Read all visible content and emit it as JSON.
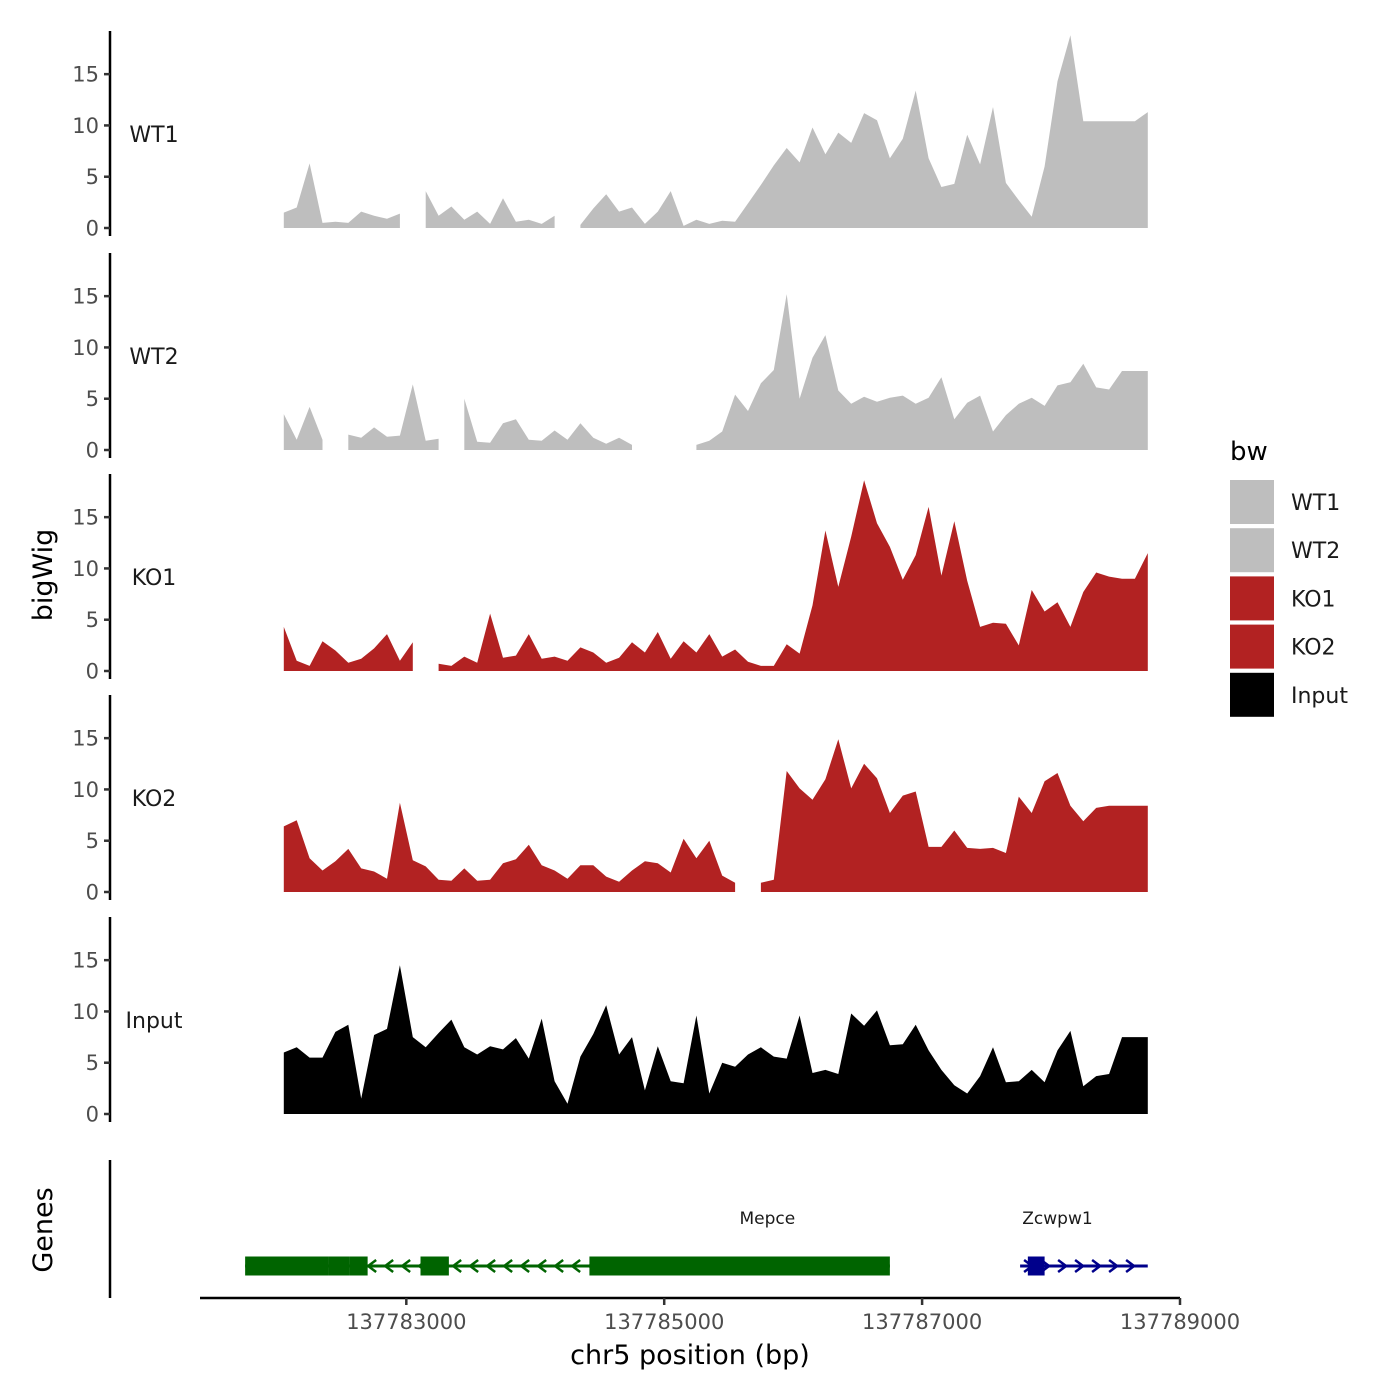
{
  "chart_data": {
    "type": "area",
    "title": "",
    "xlabel": "chr5 position (bp)",
    "ylabel": "bigWig",
    "xlim": [
      137781400,
      137789000
    ],
    "ylim": [
      0,
      19.5
    ],
    "x_ticks": [
      137783000,
      137785000,
      137787000,
      137789000
    ],
    "x_tick_labels": [
      "137783000",
      "137785000",
      "137787000",
      "137789000"
    ],
    "y_ticks": [
      0,
      5,
      10,
      15
    ],
    "y_tick_labels": [
      "0",
      "5",
      "10",
      "15"
    ],
    "genes_label": "Genes",
    "legend": {
      "title": "bw",
      "position": "right",
      "items": [
        {
          "name": "WT1",
          "color": "#bebebe"
        },
        {
          "name": "WT2",
          "color": "#bebebe"
        },
        {
          "name": "KO1",
          "color": "#b22222"
        },
        {
          "name": "KO2",
          "color": "#b22222"
        },
        {
          "name": "Input",
          "color": "#000000"
        }
      ]
    },
    "x": [
      137782050,
      137782150,
      137782250,
      137782350,
      137782450,
      137782550,
      137782650,
      137782750,
      137782850,
      137782950,
      137783050,
      137783150,
      137783250,
      137783350,
      137783450,
      137783550,
      137783650,
      137783750,
      137783850,
      137783950,
      137784050,
      137784150,
      137784250,
      137784350,
      137784450,
      137784550,
      137784650,
      137784750,
      137784850,
      137784950,
      137785050,
      137785150,
      137785250,
      137785350,
      137785450,
      137785550,
      137785650,
      137785750,
      137785850,
      137785950,
      137786050,
      137786150,
      137786250,
      137786350,
      137786450,
      137786550,
      137786650,
      137786750,
      137786850,
      137786950,
      137787050,
      137787150,
      137787250,
      137787350,
      137787450,
      137787550,
      137787650,
      137787750,
      137787850,
      137787950,
      137788050,
      137788150,
      137788250,
      137788350,
      137788450,
      137788550,
      137788650,
      137788750
    ],
    "series": [
      {
        "name": "WT1",
        "color": "#bebebe",
        "values": [
          1.5,
          2.0,
          6.3,
          0.5,
          0.6,
          0.5,
          1.6,
          1.2,
          0.9,
          1.4,
          null,
          3.6,
          1.2,
          2.1,
          0.8,
          1.6,
          0.4,
          2.9,
          0.6,
          0.8,
          0.4,
          1.2,
          null,
          0.3,
          1.9,
          3.3,
          1.6,
          2.0,
          0.4,
          1.6,
          3.6,
          0.2,
          0.8,
          0.4,
          0.7,
          0.6,
          2.4,
          4.2,
          6.1,
          7.8,
          6.4,
          9.8,
          7.2,
          9.3,
          8.3,
          11.2,
          10.5,
          6.8,
          8.7,
          13.4,
          6.8,
          4.0,
          4.3,
          9.1,
          6.2,
          11.8,
          4.4,
          2.7,
          1.1,
          6.0,
          14.3,
          18.8,
          10.4,
          10.4,
          10.4,
          10.4,
          10.4,
          11.3
        ]
      },
      {
        "name": "WT2",
        "color": "#bebebe",
        "values": [
          3.5,
          1.0,
          4.2,
          1.0,
          null,
          1.5,
          1.2,
          2.2,
          1.3,
          1.4,
          6.4,
          0.9,
          1.1,
          null,
          5.0,
          0.8,
          0.7,
          2.6,
          3.0,
          1.0,
          0.9,
          1.9,
          1.0,
          2.6,
          1.2,
          0.6,
          1.2,
          0.5,
          null,
          null,
          null,
          null,
          0.5,
          0.9,
          1.8,
          5.4,
          3.8,
          6.5,
          7.8,
          15.2,
          5.0,
          9.0,
          11.2,
          5.8,
          4.5,
          5.2,
          4.7,
          5.1,
          5.3,
          4.5,
          5.1,
          7.1,
          3.0,
          4.6,
          5.3,
          1.8,
          3.4,
          4.5,
          5.1,
          4.3,
          6.3,
          6.6,
          8.4,
          6.1,
          5.9,
          7.7,
          7.7,
          7.7
        ]
      },
      {
        "name": "KO1",
        "color": "#b22222",
        "values": [
          4.3,
          1.0,
          0.5,
          2.9,
          2.0,
          0.8,
          1.2,
          2.2,
          3.6,
          1.0,
          2.8,
          null,
          0.7,
          0.5,
          1.4,
          0.8,
          5.6,
          1.3,
          1.5,
          3.6,
          1.2,
          1.4,
          1.0,
          2.3,
          1.8,
          0.8,
          1.3,
          2.8,
          1.8,
          3.8,
          1.2,
          2.9,
          1.8,
          3.6,
          1.4,
          2.1,
          0.9,
          0.5,
          0.5,
          2.6,
          1.7,
          6.4,
          13.7,
          8.2,
          13.1,
          18.6,
          14.4,
          12.1,
          8.9,
          11.3,
          16.0,
          9.3,
          14.6,
          8.8,
          4.3,
          4.7,
          4.6,
          2.5,
          7.9,
          5.8,
          6.7,
          4.3,
          7.7,
          9.6,
          9.2,
          9.0,
          9.0,
          11.5
        ]
      },
      {
        "name": "KO2",
        "color": "#b22222",
        "values": [
          6.4,
          7.0,
          3.3,
          2.1,
          3.0,
          4.2,
          2.3,
          2.0,
          1.3,
          8.7,
          3.1,
          2.5,
          1.2,
          1.1,
          2.3,
          1.1,
          1.2,
          2.8,
          3.2,
          4.6,
          2.6,
          2.1,
          1.3,
          2.6,
          2.6,
          1.5,
          1.0,
          2.1,
          3.0,
          2.8,
          1.9,
          5.2,
          3.3,
          5.0,
          1.6,
          0.9,
          null,
          0.9,
          1.2,
          11.8,
          10.1,
          9.0,
          11.0,
          14.9,
          10.1,
          12.5,
          11.1,
          7.7,
          9.4,
          9.8,
          4.4,
          4.4,
          6.0,
          4.3,
          4.2,
          4.3,
          3.8,
          9.3,
          7.7,
          10.8,
          11.6,
          8.4,
          6.9,
          8.2,
          8.4,
          8.4,
          8.4,
          8.4
        ]
      },
      {
        "name": "Input",
        "color": "#000000",
        "values": [
          6.0,
          6.5,
          5.5,
          5.5,
          8.0,
          8.7,
          1.5,
          7.7,
          8.3,
          14.5,
          7.5,
          6.5,
          7.9,
          9.2,
          6.5,
          5.8,
          6.6,
          6.3,
          7.4,
          5.4,
          9.3,
          3.2,
          1.0,
          5.6,
          7.8,
          10.6,
          5.8,
          7.5,
          2.3,
          6.6,
          3.2,
          3.0,
          9.6,
          2.0,
          5.0,
          4.6,
          5.8,
          6.5,
          5.6,
          5.4,
          9.6,
          4.0,
          4.3,
          3.9,
          9.8,
          8.6,
          10.1,
          6.7,
          6.8,
          8.7,
          6.2,
          4.3,
          2.8,
          2.0,
          3.7,
          6.5,
          3.1,
          3.2,
          4.3,
          3.1,
          6.2,
          8.1,
          2.7,
          3.7,
          3.9,
          7.5,
          7.5,
          7.5
        ]
      }
    ],
    "genes": [
      {
        "name": "Mepce",
        "strand": "-",
        "color": "#006400",
        "start": 137781750,
        "end": 137786750,
        "label_x": 137785800,
        "exons": [
          [
            137781750,
            137782400
          ],
          [
            137782400,
            137782560
          ],
          [
            137782560,
            137782700
          ],
          [
            137783110,
            137783330
          ],
          [
            137784420,
            137786750
          ]
        ]
      },
      {
        "name": "Zcwpw1",
        "strand": "+",
        "color": "#00008b",
        "start": 137787760,
        "end": 137788750,
        "label_x": 137788050,
        "exons": [
          [
            137787820,
            137787950
          ]
        ]
      }
    ]
  }
}
